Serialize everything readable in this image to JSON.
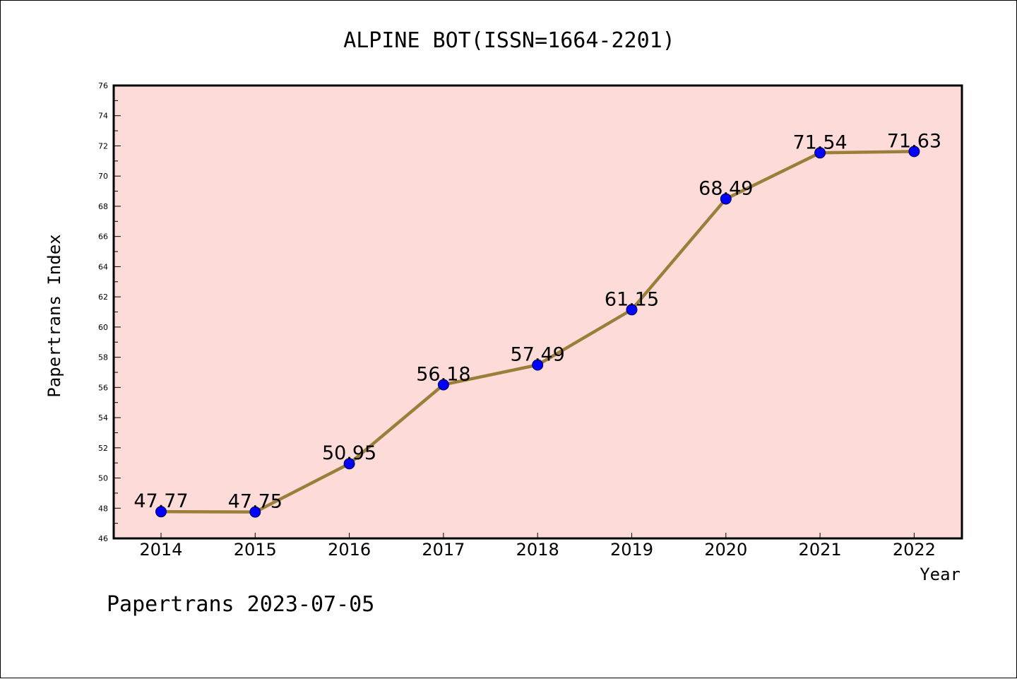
{
  "chart_data": {
    "type": "line",
    "title": "ALPINE BOT(ISSN=1664-2201)",
    "xlabel": "Year",
    "ylabel": "Papertrans Index",
    "categories": [
      "2014",
      "2015",
      "2016",
      "2017",
      "2018",
      "2019",
      "2020",
      "2021",
      "2022"
    ],
    "series": [
      {
        "values": [
          47.77,
          47.75,
          50.95,
          56.18,
          57.49,
          61.15,
          68.49,
          71.54,
          71.63
        ],
        "labels": [
          "47.77",
          "47.75",
          "50.95",
          "56.18",
          "57.49",
          "61.15",
          "68.49",
          "71.54",
          "71.63"
        ]
      }
    ],
    "ylim": [
      46,
      76
    ],
    "yticks": [
      46,
      48,
      50,
      52,
      54,
      56,
      58,
      60,
      62,
      64,
      66,
      68,
      70,
      72,
      74,
      76
    ],
    "grid": false,
    "colors": {
      "plot_background": "#fddbd9",
      "line": "#9a7f3a",
      "marker": "#0000ff",
      "marker_edge": "#00004a"
    }
  },
  "footer": "Papertrans 2023-07-05"
}
